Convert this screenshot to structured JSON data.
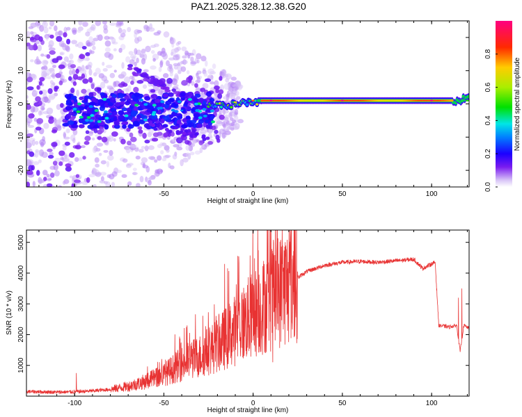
{
  "title": "PAZ1.2025.328.12.38.G20",
  "chart_data": [
    {
      "type": "heatmap",
      "name": "spectrogram",
      "xlabel": "Height of straight line (km)",
      "ylabel": "Frequency (Hz)",
      "xlim": [
        -127,
        121
      ],
      "ylim": [
        -25,
        25
      ],
      "xticks": [
        -100,
        -50,
        0,
        50,
        100
      ],
      "yticks": [
        -20,
        -10,
        0,
        10,
        20
      ],
      "colorbar": {
        "label": "Normalized spectral amplitude",
        "range": [
          0,
          1
        ],
        "ticks": [
          "0.0",
          "0.2",
          "0.4",
          "0.6",
          "0.8"
        ]
      },
      "description_points": [
        {
          "x": -120,
          "y": 0,
          "amp": 0.1
        },
        {
          "x": -80,
          "y": -3,
          "amp": 0.25
        },
        {
          "x": -40,
          "y": -2,
          "amp": 0.3
        },
        {
          "x": -20,
          "y": 0,
          "amp": 0.45
        },
        {
          "x": -10,
          "y": 0.5,
          "amp": 0.7
        },
        {
          "x": 0,
          "y": 1,
          "amp": 0.8
        },
        {
          "x": 10,
          "y": 1,
          "amp": 1.0
        },
        {
          "x": 50,
          "y": 1,
          "amp": 1.0
        },
        {
          "x": 100,
          "y": 1,
          "amp": 1.0
        },
        {
          "x": 120,
          "y": 1,
          "amp": 0.5
        }
      ]
    },
    {
      "type": "line",
      "name": "snr",
      "xlabel": "Height of straight line (km)",
      "ylabel": "SNR (10 * v/v)",
      "xlim": [
        -127,
        121
      ],
      "ylim": [
        0,
        5400
      ],
      "xticks": [
        -100,
        -50,
        0,
        50,
        100
      ],
      "yticks": [
        1000,
        2000,
        3000,
        4000,
        5000
      ],
      "color": "#e83232",
      "points": [
        {
          "x": -127,
          "y": 150
        },
        {
          "x": -110,
          "y": 130
        },
        {
          "x": -100,
          "y": 140
        },
        {
          "x": -90,
          "y": 170
        },
        {
          "x": -80,
          "y": 220
        },
        {
          "x": -70,
          "y": 320
        },
        {
          "x": -60,
          "y": 480
        },
        {
          "x": -50,
          "y": 700
        },
        {
          "x": -40,
          "y": 1050
        },
        {
          "x": -30,
          "y": 1300
        },
        {
          "x": -20,
          "y": 1650
        },
        {
          "x": -10,
          "y": 2150
        },
        {
          "x": 0,
          "y": 2650
        },
        {
          "x": 10,
          "y": 3150
        },
        {
          "x": 20,
          "y": 3650
        },
        {
          "x": 30,
          "y": 4050
        },
        {
          "x": 40,
          "y": 4250
        },
        {
          "x": 50,
          "y": 4350
        },
        {
          "x": 60,
          "y": 4380
        },
        {
          "x": 70,
          "y": 4350
        },
        {
          "x": 80,
          "y": 4400
        },
        {
          "x": 90,
          "y": 4450
        },
        {
          "x": 95,
          "y": 4150
        },
        {
          "x": 100,
          "y": 4300
        },
        {
          "x": 102,
          "y": 4350
        },
        {
          "x": 104,
          "y": 2300
        },
        {
          "x": 110,
          "y": 2250
        },
        {
          "x": 114,
          "y": 2300
        },
        {
          "x": 116,
          "y": 1450
        },
        {
          "x": 118,
          "y": 2300
        },
        {
          "x": 121,
          "y": 2200
        }
      ],
      "spikes": [
        {
          "x": -99,
          "y": 750
        },
        {
          "x": -37,
          "y": 2300
        },
        {
          "x": -16,
          "y": 4300
        },
        {
          "x": 10,
          "y": 5400
        },
        {
          "x": 11,
          "y": 1100
        },
        {
          "x": 115,
          "y": 3200
        },
        {
          "x": 117,
          "y": 3500
        }
      ]
    }
  ]
}
